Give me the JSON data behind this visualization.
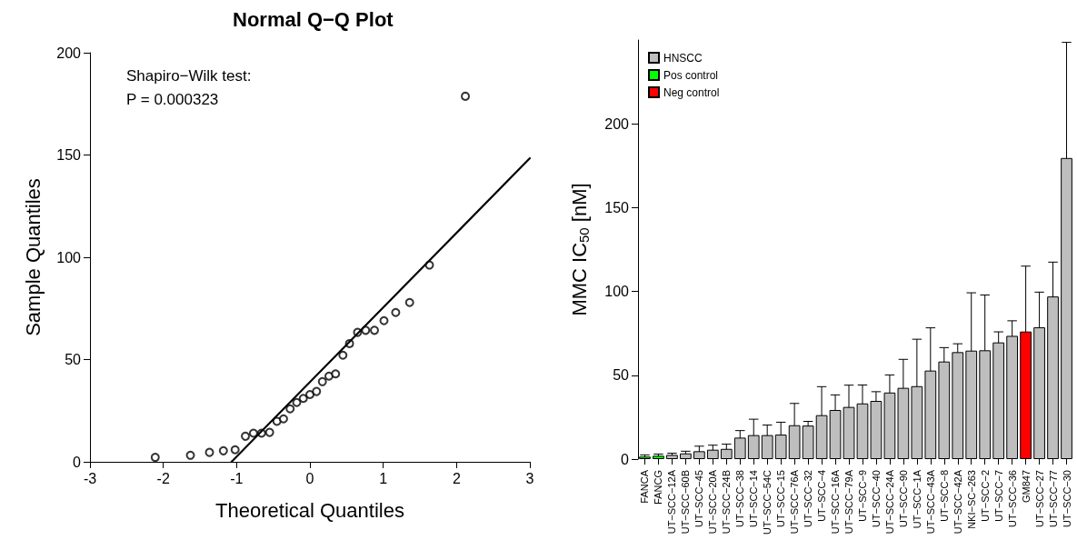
{
  "chart_data": [
    {
      "type": "scatter",
      "title": "Normal Q−Q Plot",
      "xlabel": "Theoretical Quantiles",
      "ylabel": "Sample Quantiles",
      "annotations": [
        "Shapiro−Wilk test:",
        "P = 0.000323"
      ],
      "xlim": [
        -3,
        3
      ],
      "xticks": [
        -3,
        -2,
        -1,
        0,
        1,
        2,
        3
      ],
      "ylim": [
        0,
        200
      ],
      "yticks": [
        0,
        50,
        100,
        150,
        200
      ],
      "grid": false,
      "legend": false,
      "marker": "circle",
      "series": [
        {
          "type": "scatter",
          "color": "#000000",
          "x": [
            -2.11,
            -1.63,
            -1.37,
            -1.18,
            -1.02,
            -0.88,
            -0.77,
            -0.66,
            -0.55,
            -0.45,
            -0.36,
            -0.27,
            -0.18,
            -0.09,
            0,
            0.09,
            0.17,
            0.26,
            0.35,
            0.45,
            0.54,
            0.65,
            0.76,
            0.88,
            1.01,
            1.17,
            1.36,
            1.63,
            2.12
          ],
          "values": [
            2.2,
            3.2,
            4.6,
            5.4,
            5.9,
            12.5,
            14,
            14,
            14.4,
            19.8,
            21,
            25.9,
            29,
            31,
            32.9,
            34.4,
            39.2,
            41.9,
            43,
            52.1,
            57.8,
            63.3,
            64.3,
            64.3,
            69,
            73,
            77.9,
            96.2,
            178.7
          ]
        },
        {
          "type": "line",
          "color": "#000000",
          "marker": "none",
          "x": [
            -1.07,
            3
          ],
          "values": [
            0,
            148.4
          ]
        }
      ]
    },
    {
      "type": "bar",
      "ylabel": "MMC IC$_{50}$ [nM]",
      "categories": [
        "FANCA",
        "FANCG",
        "UT−SCC−12A",
        "UT−SCC−60B",
        "UT−SCC−45",
        "UT−SCC−20A",
        "UT−SCC−24B",
        "UT−SCC−38",
        "UT−SCC−14",
        "UT−SCC−54C",
        "UT−SCC−15",
        "UT−SCC−76A",
        "UT−SCC−32",
        "UT−SCC−4",
        "UT−SCC−16A",
        "UT−SCC−79A",
        "UT−SCC−9",
        "UT−SCC−40",
        "UT−SCC−24A",
        "UT−SCC−90",
        "UT−SCC−1A",
        "UT−SCC−43A",
        "UT−SCC−8",
        "UT−SCC−42A",
        "NKI−SC−263",
        "UT−SCC−2",
        "UT−SCC−7",
        "UT−SCC−36",
        "GM847",
        "UT−SCC−27",
        "UT−SCC−77",
        "UT−SCC−30"
      ],
      "stacked": true,
      "ylim": [
        0,
        250
      ],
      "yticks": [
        0,
        50,
        100,
        150,
        200
      ],
      "grid": false,
      "legend": "top left",
      "series": [
        {
          "name": "HNSCC",
          "color": "#bebebe",
          "values": [
            null,
            null,
            2.5,
            3.4,
            4.7,
            5.6,
            6.1,
            12.8,
            14.3,
            14.3,
            14.6,
            20.2,
            20,
            26.2,
            29.3,
            31.1,
            33.2,
            34.7,
            39.7,
            42.5,
            43.5,
            52.8,
            58.2,
            63.8,
            64.7,
            64.9,
            69.6,
            73.5,
            null,
            78.6,
            97,
            179.6
          ],
          "errors": [
            null,
            null,
            1,
            1.3,
            3,
            2.7,
            2.8,
            4.2,
            9.5,
            6,
            7.4,
            13,
            2.5,
            17,
            9,
            13,
            11,
            5.5,
            10.5,
            17,
            28,
            25.5,
            8.3,
            5,
            34.5,
            33,
            6.3,
            9,
            null,
            21,
            20.5,
            69
          ]
        },
        {
          "name": "Pos control",
          "color": "#00ff00",
          "values": [
            1.5,
            2,
            null,
            null,
            null,
            null,
            null,
            null,
            null,
            null,
            null,
            null,
            null,
            null,
            null,
            null,
            null,
            null,
            null,
            null,
            null,
            null,
            null,
            null,
            null,
            null,
            null,
            null,
            null,
            null,
            null,
            null
          ],
          "errors": [
            1,
            1,
            null,
            null,
            null,
            null,
            null,
            null,
            null,
            null,
            null,
            null,
            null,
            null,
            null,
            null,
            null,
            null,
            null,
            null,
            null,
            null,
            null,
            null,
            null,
            null,
            null,
            null,
            null,
            null,
            null,
            null
          ]
        },
        {
          "name": "Neg control",
          "color": "#ff0000",
          "values": [
            null,
            null,
            null,
            null,
            null,
            null,
            null,
            null,
            null,
            null,
            null,
            null,
            null,
            null,
            null,
            null,
            null,
            null,
            null,
            null,
            null,
            null,
            null,
            null,
            null,
            null,
            null,
            null,
            76.1,
            null,
            null,
            null
          ],
          "errors": [
            null,
            null,
            null,
            null,
            null,
            null,
            null,
            null,
            null,
            null,
            null,
            null,
            null,
            null,
            null,
            null,
            null,
            null,
            null,
            null,
            null,
            null,
            null,
            null,
            null,
            null,
            null,
            null,
            39,
            null,
            null,
            null
          ]
        }
      ]
    }
  ]
}
